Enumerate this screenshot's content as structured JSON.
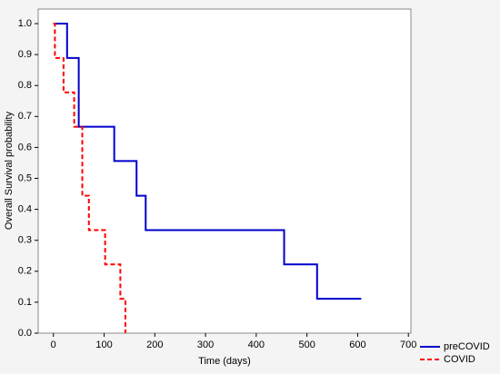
{
  "chart_data": {
    "type": "step",
    "xlabel": "Time (days)",
    "ylabel": "Overall Survival probability",
    "xlim": [
      -30,
      705
    ],
    "ylim": [
      0,
      1.047
    ],
    "xticks": [
      0,
      100,
      200,
      300,
      400,
      500,
      600,
      700
    ],
    "yticks": [
      {
        "value": 0,
        "label": "0.0"
      },
      0.1,
      0.2,
      0.3,
      0.4,
      0.5,
      0.6,
      0.7,
      0.8,
      0.9,
      {
        "value": 1,
        "label": "1.0"
      }
    ],
    "legend": "lower right outside",
    "series": [
      {
        "name": "preCOVID",
        "color": "#0000cc",
        "dash": false,
        "x": [
          0,
          27,
          50,
          120,
          164,
          182,
          455,
          520,
          607
        ],
        "values": [
          1,
          0.889,
          0.667,
          0.556,
          0.444,
          0.333,
          0.222,
          0.111,
          0.111
        ]
      },
      {
        "name": "COVID",
        "color": "#ff0000",
        "dash": true,
        "x": [
          0,
          3,
          20,
          41,
          57,
          70,
          102,
          132,
          142
        ],
        "values": [
          1,
          0.889,
          0.778,
          0.667,
          0.444,
          0.333,
          0.222,
          0.111,
          0
        ]
      }
    ]
  }
}
